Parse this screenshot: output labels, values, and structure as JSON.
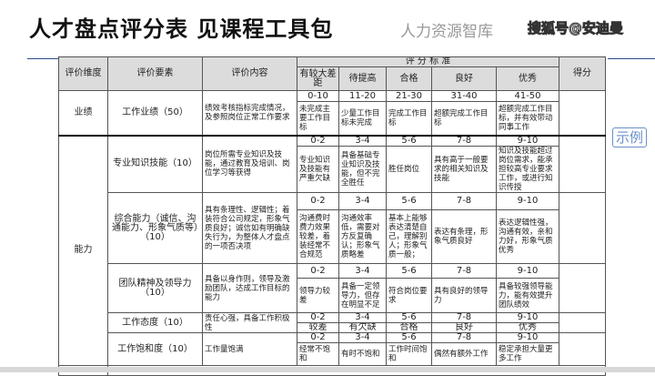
{
  "title": "人才盘点评分表 见课程工具包",
  "headers": {
    "dimension": "评价维度",
    "factor": "评价要素",
    "content": "评价内容",
    "standard": "评 分 标 准",
    "score": "得分",
    "levels": [
      "有较大差距",
      "待提高",
      "合格",
      "良好",
      "优秀"
    ]
  },
  "rows": [
    {
      "dimension": "业绩",
      "factor": "工作业绩（50）",
      "content": "绩效考核指标完成情况，及参照岗位正常工作要求",
      "ranges": [
        "0-10",
        "11-20",
        "21-30",
        "31-40",
        "41-50"
      ],
      "descs": [
        "未完成主要工作目标",
        "少量工作目标未完成",
        "完成工作目标",
        "超额完成工作目标",
        "超额完成工作目标，并有效带动同事工作"
      ]
    },
    {
      "dimension": "能力",
      "factor": "专业知识技能（10）",
      "content": "岗位所需专业知识及技能，通过教育及培训、岗位学习等获得",
      "ranges": [
        "0-2",
        "3-4",
        "5-6",
        "7-8",
        "9-10"
      ],
      "descs": [
        "专业知识及技能有严重欠缺",
        "具备基础专业知识及技能，但不完全胜任",
        "胜任岗位",
        "具有高于一般要求的相关知识及技能",
        "知识及技能超过岗位需求，能承担较高专业要求工作，或进行知识传授"
      ]
    },
    {
      "factor": "综合能力（诚信、沟通能力、形象气质等）（10）",
      "content": "具有条理性、逻辑性；着装符合公司规定，形象气质良好；诚信如有明确缺失行为，为整体人才盘点的一项否决项",
      "ranges": [
        "0-2",
        "3-4",
        "5-6",
        "7-8",
        "9-10"
      ],
      "descs": [
        "沟通费时费力效果较差，着装经常不合规范",
        "沟通效率低，需要对方反复确认；形象气质略差",
        "基本上能够表达清楚自己，理解别人；形象气质一般；",
        "表达有条理，形象气质良好",
        "表达逻辑性强，沟通有效，亲和力好，形象气质优秀"
      ]
    },
    {
      "factor": "团队精神及领导力（10）",
      "content": "具备以身作则，领导及激励团队，达成工作目标的能力",
      "ranges": [
        "0-2",
        "3-4",
        "5-6",
        "7-8",
        "9-10"
      ],
      "descs": [
        "领导力较差",
        "具备一定领导力，但存在明显不足",
        "符合岗位要求",
        "具有良好的领导力",
        "具备较强领导能力，能有效提升团队绩效"
      ]
    },
    {
      "factor": "工作态度（10）",
      "content": "责任心强，具备工作积极性",
      "ranges": [
        "0-2",
        "3-4",
        "5-6",
        "7-8",
        "9-10"
      ],
      "descs": [
        "较差",
        "有欠缺",
        "合格",
        "良好",
        "优秀"
      ]
    },
    {
      "factor": "工作饱和度（10）",
      "content": "工作量饱满",
      "ranges": [
        "0-2",
        "3-4",
        "5-6",
        "7-8",
        "9-10"
      ],
      "descs": [
        "经常不饱和",
        "有时不饱和",
        "工作时间饱和",
        "偶然有额外工作",
        "稳定承担大量更多工作"
      ]
    }
  ],
  "stamp": "示例",
  "watermark": "人力资源智库",
  "watermark2": "搜狐号@安迪曼",
  "colors": {
    "header_bg": "#dcdcdc",
    "stamp": "#6b8fc8",
    "rule": "#2b4f86"
  }
}
